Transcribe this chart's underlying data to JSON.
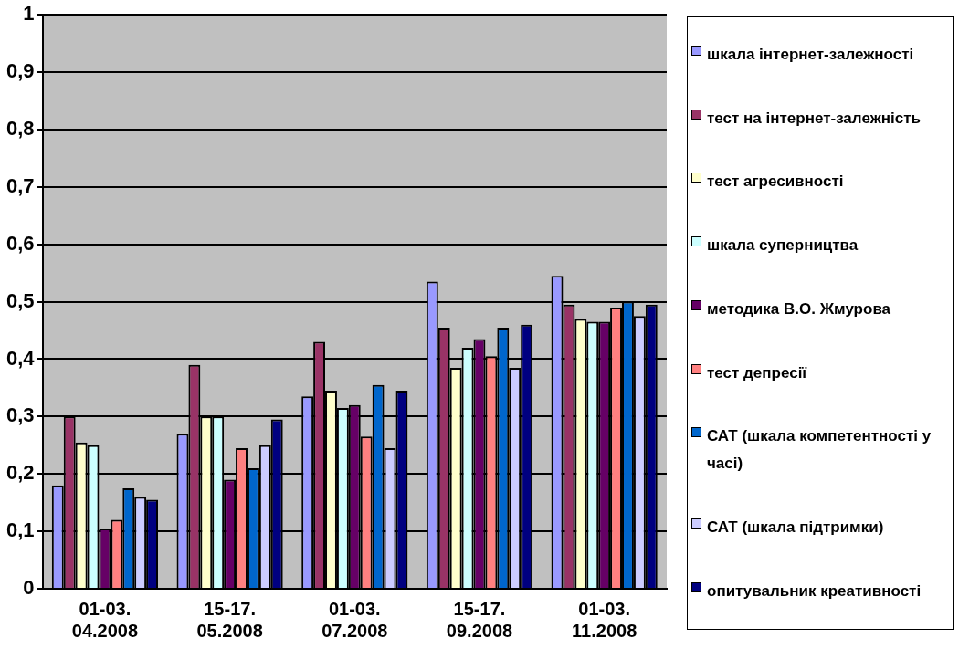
{
  "chart_data": {
    "type": "bar",
    "categories": [
      "01-03. 04.2008",
      "15-17. 05.2008",
      "01-03. 07.2008",
      "15-17. 09.2008",
      "01-03. 11.2008"
    ],
    "series": [
      {
        "name": "шкала інтернет-залежності",
        "color": "#9999ff",
        "values": [
          0.18,
          0.27,
          0.335,
          0.535,
          0.545
        ]
      },
      {
        "name": "тест на інтернет-залежність",
        "color": "#993366",
        "values": [
          0.3,
          0.39,
          0.43,
          0.455,
          0.495
        ]
      },
      {
        "name": "тест агресивності",
        "color": "#ffffcc",
        "values": [
          0.255,
          0.3,
          0.345,
          0.385,
          0.47
        ]
      },
      {
        "name": "шкала суперництва",
        "color": "#ccffff",
        "values": [
          0.25,
          0.3,
          0.315,
          0.42,
          0.465
        ]
      },
      {
        "name": "методика В.О. Жмурова",
        "color": "#660066",
        "values": [
          0.105,
          0.19,
          0.32,
          0.435,
          0.465
        ]
      },
      {
        "name": "тест депресії",
        "color": "#ff8080",
        "values": [
          0.12,
          0.245,
          0.265,
          0.405,
          0.49
        ]
      },
      {
        "name": "САТ (шкала компетентності у часі)",
        "color": "#0066cc",
        "values": [
          0.175,
          0.21,
          0.355,
          0.455,
          0.5
        ]
      },
      {
        "name": "САТ (шкала підтримки)",
        "color": "#ccccff",
        "values": [
          0.16,
          0.25,
          0.245,
          0.385,
          0.475
        ]
      },
      {
        "name": "опитувальник креативності",
        "color": "#000080",
        "values": [
          0.155,
          0.295,
          0.345,
          0.46,
          0.495
        ]
      }
    ],
    "ylim": [
      0,
      1
    ],
    "yticks": [
      {
        "value": 0,
        "label": "0"
      },
      {
        "value": 0.1,
        "label": "0,1"
      },
      {
        "value": 0.2,
        "label": "0,2"
      },
      {
        "value": 0.3,
        "label": "0,3"
      },
      {
        "value": 0.4,
        "label": "0,4"
      },
      {
        "value": 0.5,
        "label": "0,5"
      },
      {
        "value": 0.6,
        "label": "0,6"
      },
      {
        "value": 0.7,
        "label": "0,7"
      },
      {
        "value": 0.8,
        "label": "0,8"
      },
      {
        "value": 0.9,
        "label": "0,9"
      },
      {
        "value": 1,
        "label": "1"
      }
    ],
    "grid": "y",
    "legend": "right"
  }
}
